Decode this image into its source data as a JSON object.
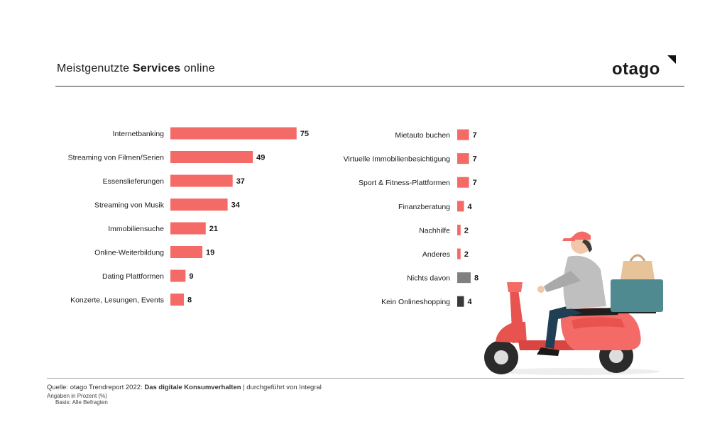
{
  "header": {
    "title_prefix": "Meistgenutzte ",
    "title_bold": "Services",
    "title_suffix": " online",
    "logo_text": "otago"
  },
  "chart_data": {
    "type": "bar",
    "orientation": "horizontal",
    "panels": [
      {
        "categories": [
          "Internetbanking",
          "Streaming von Filmen/Serien",
          "Essenslieferungen",
          "Streaming von Musik",
          "Immobiliensuche",
          "Online-Weiterbildung",
          "Dating Plattformen",
          "Konzerte, Lesungen, Events"
        ],
        "values": [
          75,
          49,
          37,
          34,
          21,
          19,
          9,
          8
        ]
      },
      {
        "categories": [
          "Mietauto buchen",
          "Virtuelle Immobilienbesichtigung",
          "Sport & Fitness-Plattformen",
          "Finanzberatung",
          "Nachhilfe",
          "Anderes",
          "Nichts davon",
          "Kein Onlineshopping"
        ],
        "values": [
          7,
          7,
          7,
          4,
          2,
          2,
          8,
          4
        ]
      }
    ],
    "colors": {
      "default": "#f46a66",
      "Nichts davon": "#808080",
      "Kein Onlineshopping": "#3a3a3a"
    },
    "data_labels": true
  },
  "footer": {
    "source_prefix": "Quelle: otago Trendreport 2022: ",
    "source_bold": "Das digitale Konsumverhalten",
    "source_suffix": " | durchgeführt von Integral",
    "unit_note": "Angaben in Prozent (%)",
    "base_note": "Basis: Alle Befragten"
  }
}
